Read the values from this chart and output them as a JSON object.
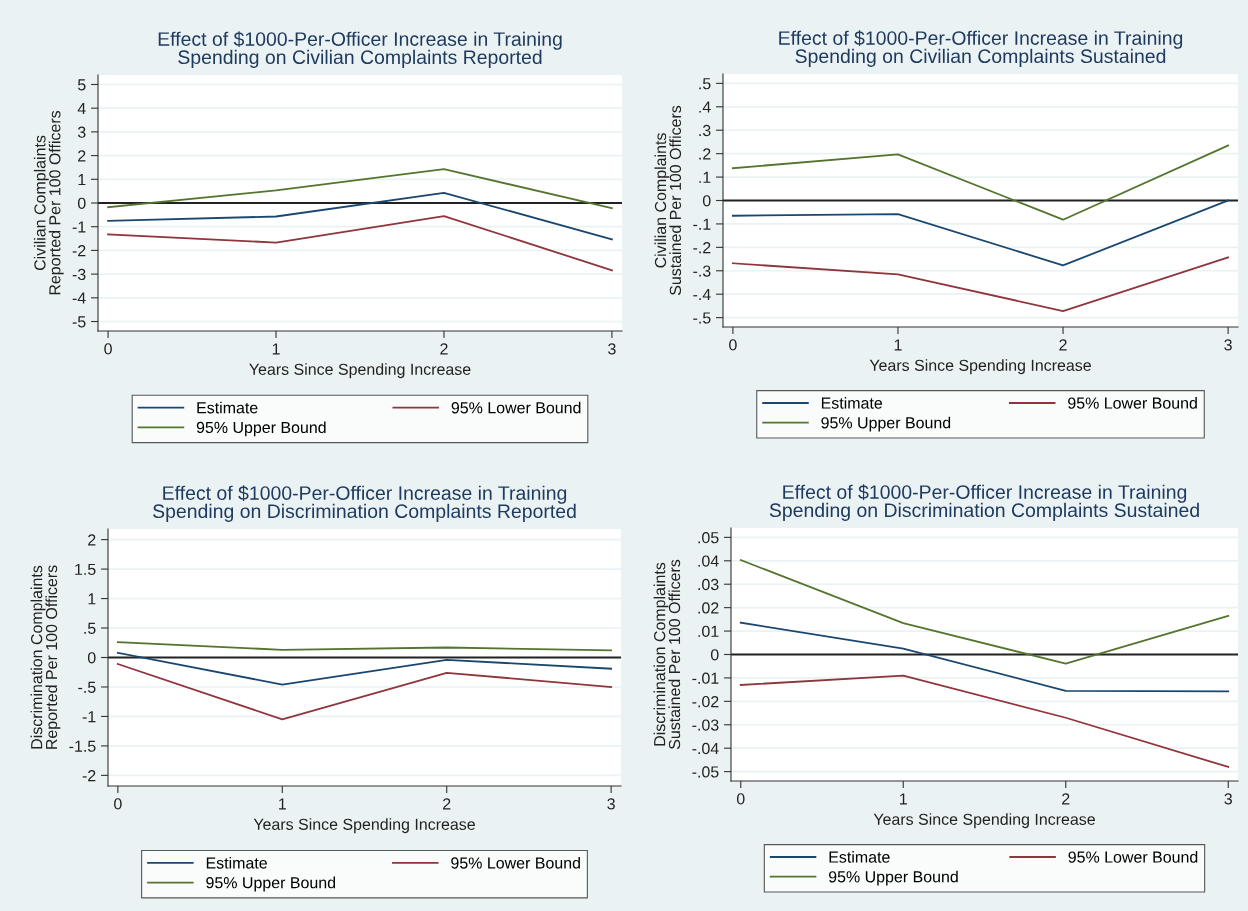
{
  "chart_data": [
    {
      "type": "line",
      "title": "Effect of $1000-Per-Officer Increase in Training\nSpending on Civilian Complaints Reported",
      "xlabel": "Years Since Spending Increase",
      "ylabel": "Civilian Complaints\nReported Per 100 Officers",
      "x": [
        0,
        1,
        2,
        3
      ],
      "xlim": [
        -0.06,
        3.06
      ],
      "xticks": [
        0,
        1,
        2,
        3
      ],
      "ylim": [
        -5.4,
        5.4
      ],
      "yticks": [
        -5,
        -4,
        -3,
        -2,
        -1,
        0,
        1,
        2,
        3,
        4,
        5
      ],
      "grid": "y",
      "legend": "bottom",
      "ref_lines": [
        {
          "axis": "y",
          "value": 0,
          "color": "#222222"
        }
      ],
      "series": [
        {
          "name": "Estimate",
          "color": "#1a476f",
          "values": [
            -0.75,
            -0.57,
            0.43,
            -1.53
          ]
        },
        {
          "name": "95% Lower Bound",
          "color": "#90353b",
          "values": [
            -1.32,
            -1.67,
            -0.55,
            -2.84
          ]
        },
        {
          "name": "95% Upper Bound",
          "color": "#55752f",
          "values": [
            -0.18,
            0.53,
            1.43,
            -0.22
          ]
        }
      ]
    },
    {
      "type": "line",
      "title": "Effect of $1000-Per-Officer Increase in Training\nSpending on Civilian Complaints Sustained",
      "xlabel": "Years Since Spending Increase",
      "ylabel": "Civilian Complaints\nSustained Per 100 Officers",
      "x": [
        0,
        1,
        2,
        3
      ],
      "xlim": [
        -0.06,
        3.06
      ],
      "xticks": [
        0,
        1,
        2,
        3
      ],
      "ylim": [
        -0.54,
        0.54
      ],
      "yticks": [
        {
          "value": -0.5,
          "label": "-.5"
        },
        {
          "value": -0.4,
          "label": "-.4"
        },
        {
          "value": -0.3,
          "label": "-.3"
        },
        {
          "value": -0.2,
          "label": "-.2"
        },
        {
          "value": -0.1,
          "label": "-.1"
        },
        0,
        {
          "value": 0.1,
          "label": ".1"
        },
        {
          "value": 0.2,
          "label": ".2"
        },
        {
          "value": 0.3,
          "label": ".3"
        },
        {
          "value": 0.4,
          "label": ".4"
        },
        {
          "value": 0.5,
          "label": ".5"
        }
      ],
      "grid": "y",
      "legend": "bottom",
      "ref_lines": [
        {
          "axis": "y",
          "value": 0,
          "color": "#222222"
        }
      ],
      "series": [
        {
          "name": "Estimate",
          "color": "#1a476f",
          "values": [
            -0.065,
            -0.058,
            -0.277,
            0.0
          ]
        },
        {
          "name": "95% Lower Bound",
          "color": "#90353b",
          "values": [
            -0.268,
            -0.315,
            -0.472,
            -0.243
          ]
        },
        {
          "name": "95% Upper Bound",
          "color": "#55752f",
          "values": [
            0.138,
            0.197,
            -0.082,
            0.235
          ]
        }
      ]
    },
    {
      "type": "line",
      "title": "Effect of $1000-Per-Officer Increase in Training\nSpending on Discrimination Complaints Reported",
      "xlabel": "Years Since Spending Increase",
      "ylabel": "Discrimination Complaints\nReported Per 100 Officers",
      "x": [
        0,
        1,
        2,
        3
      ],
      "xlim": [
        -0.06,
        3.06
      ],
      "xticks": [
        0,
        1,
        2,
        3
      ],
      "ylim": [
        -2.18,
        2.18
      ],
      "yticks": [
        -2,
        -1.5,
        -1,
        {
          "value": -0.5,
          "label": "-.5"
        },
        0,
        {
          "value": 0.5,
          "label": ".5"
        },
        1,
        1.5,
        2
      ],
      "grid": "y",
      "legend": "bottom",
      "ref_lines": [
        {
          "axis": "y",
          "value": 0,
          "color": "#222222"
        }
      ],
      "series": [
        {
          "name": "Estimate",
          "color": "#1a476f",
          "values": [
            0.08,
            -0.46,
            -0.04,
            -0.19
          ]
        },
        {
          "name": "95% Lower Bound",
          "color": "#90353b",
          "values": [
            -0.11,
            -1.05,
            -0.26,
            -0.5
          ]
        },
        {
          "name": "95% Upper Bound",
          "color": "#55752f",
          "values": [
            0.26,
            0.13,
            0.17,
            0.12
          ]
        }
      ]
    },
    {
      "type": "line",
      "title": "Effect of $1000-Per-Officer Increase in Training\nSpending on Discrimination Complaints Sustained",
      "xlabel": "Years Since Spending Increase",
      "ylabel": "Discrimination Complaints\nSustained Per 100 Officers",
      "x": [
        0,
        1,
        2,
        3
      ],
      "xlim": [
        -0.06,
        3.06
      ],
      "xticks": [
        0,
        1,
        2,
        3
      ],
      "ylim": [
        -0.054,
        0.054
      ],
      "yticks": [
        {
          "value": -0.05,
          "label": "-.05"
        },
        {
          "value": -0.04,
          "label": "-.04"
        },
        {
          "value": -0.03,
          "label": "-.03"
        },
        {
          "value": -0.02,
          "label": "-.02"
        },
        {
          "value": -0.01,
          "label": "-.01"
        },
        0,
        {
          "value": 0.01,
          "label": ".01"
        },
        {
          "value": 0.02,
          "label": ".02"
        },
        {
          "value": 0.03,
          "label": ".03"
        },
        {
          "value": 0.04,
          "label": ".04"
        },
        {
          "value": 0.05,
          "label": ".05"
        }
      ],
      "grid": "y",
      "legend": "bottom",
      "ref_lines": [
        {
          "axis": "y",
          "value": 0,
          "color": "#222222"
        }
      ],
      "series": [
        {
          "name": "Estimate",
          "color": "#1a476f",
          "values": [
            0.0136,
            0.0025,
            -0.0155,
            -0.0157
          ]
        },
        {
          "name": "95% Lower Bound",
          "color": "#90353b",
          "values": [
            -0.013,
            -0.009,
            -0.027,
            -0.048
          ]
        },
        {
          "name": "95% Upper Bound",
          "color": "#55752f",
          "values": [
            0.0403,
            0.0134,
            -0.0039,
            0.0165
          ]
        }
      ]
    }
  ]
}
